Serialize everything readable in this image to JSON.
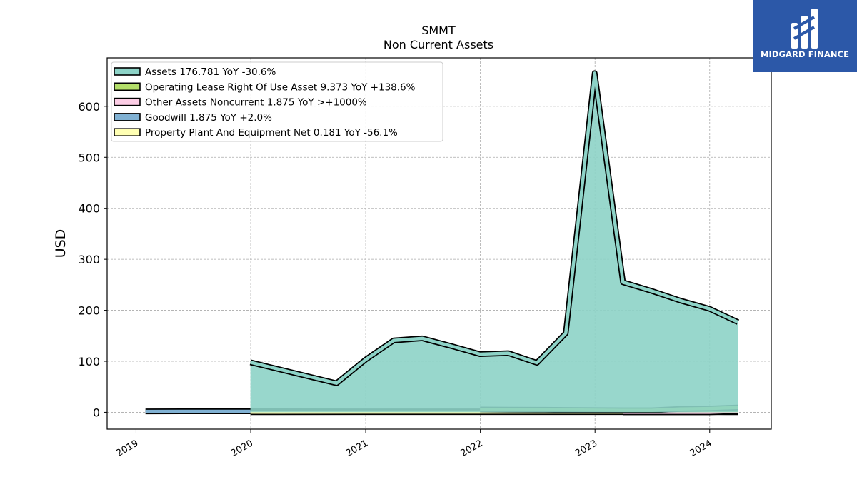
{
  "brand": {
    "name": "MIDGARD FINANCE",
    "logo_icon": "midgard-m-mark-icon",
    "background_color": "#2c58a8"
  },
  "chart_data": {
    "type": "area",
    "title": "SMMT",
    "subtitle": "Non Current  Assets",
    "ylabel": "USD",
    "xlabel": "",
    "xlim": [
      "2018-10-01",
      "2024-07-15"
    ],
    "ylim": [
      -33,
      695
    ],
    "x_ticks": [
      "2019",
      "2020",
      "2021",
      "2022",
      "2023",
      "2024"
    ],
    "y_ticks": [
      0,
      100,
      200,
      300,
      400,
      500,
      600
    ],
    "grid": true,
    "legend_position": "top-left",
    "series": [
      {
        "name": "Assets",
        "legend_label": "Assets  176.781 YoY -30.6%",
        "color": "#8dd3c7",
        "x": [
          "2019-12-31",
          "2020-09-30",
          "2020-12-31",
          "2021-03-31",
          "2021-06-30",
          "2021-09-30",
          "2021-12-31",
          "2022-03-31",
          "2022-06-30",
          "2022-09-30",
          "2022-12-31",
          "2023-03-31",
          "2023-06-30",
          "2023-09-30",
          "2023-12-31",
          "2024-03-31"
        ],
        "y": [
          98,
          57,
          103,
          141,
          145,
          130,
          114,
          116,
          97,
          155,
          665,
          255,
          238,
          219,
          203,
          176.781
        ]
      },
      {
        "name": "Operating Lease Right Of Use Asset",
        "legend_label": "Operating Lease Right Of Use Asset  9.373 YoY +138.6%",
        "color": "#b3de69",
        "x": [
          "2021-12-31",
          "2022-03-31",
          "2022-06-30",
          "2022-09-30",
          "2022-12-31",
          "2023-03-31",
          "2023-06-30",
          "2023-09-30",
          "2023-12-31",
          "2024-03-31"
        ],
        "y": [
          5.5,
          5.2,
          5.0,
          4.6,
          4.3,
          4.0,
          3.9,
          6.5,
          7.5,
          9.373
        ]
      },
      {
        "name": "Other Assets Noncurrent",
        "legend_label": "Other Assets Noncurrent  1.875 YoY >+1000%",
        "color": "#fccde5",
        "x": [
          "2023-03-31",
          "2023-06-30",
          "2023-09-30",
          "2023-12-31",
          "2024-03-31"
        ],
        "y": [
          0.1,
          0.1,
          0.1,
          0.1,
          1.875
        ]
      },
      {
        "name": "Goodwill",
        "legend_label": "Goodwill  1.875 YoY +2.0%",
        "color": "#80b1d3",
        "x": [
          "2019-01-31",
          "2019-12-31",
          "2020-12-31",
          "2021-12-31",
          "2022-12-31",
          "2023-12-31",
          "2024-03-31"
        ],
        "y": [
          1.9,
          2.0,
          1.8,
          1.9,
          1.8,
          1.84,
          1.875
        ]
      },
      {
        "name": "Property Plant And Equipment Net",
        "legend_label": "Property Plant And Equipment Net  0.181 YoY -56.1%",
        "color": "#ffffb3",
        "x": [
          "2019-12-31",
          "2020-12-31",
          "2021-12-31",
          "2022-12-31",
          "2023-12-31",
          "2024-03-31"
        ],
        "y": [
          0.3,
          0.35,
          0.4,
          0.4,
          0.35,
          0.181
        ]
      }
    ]
  }
}
